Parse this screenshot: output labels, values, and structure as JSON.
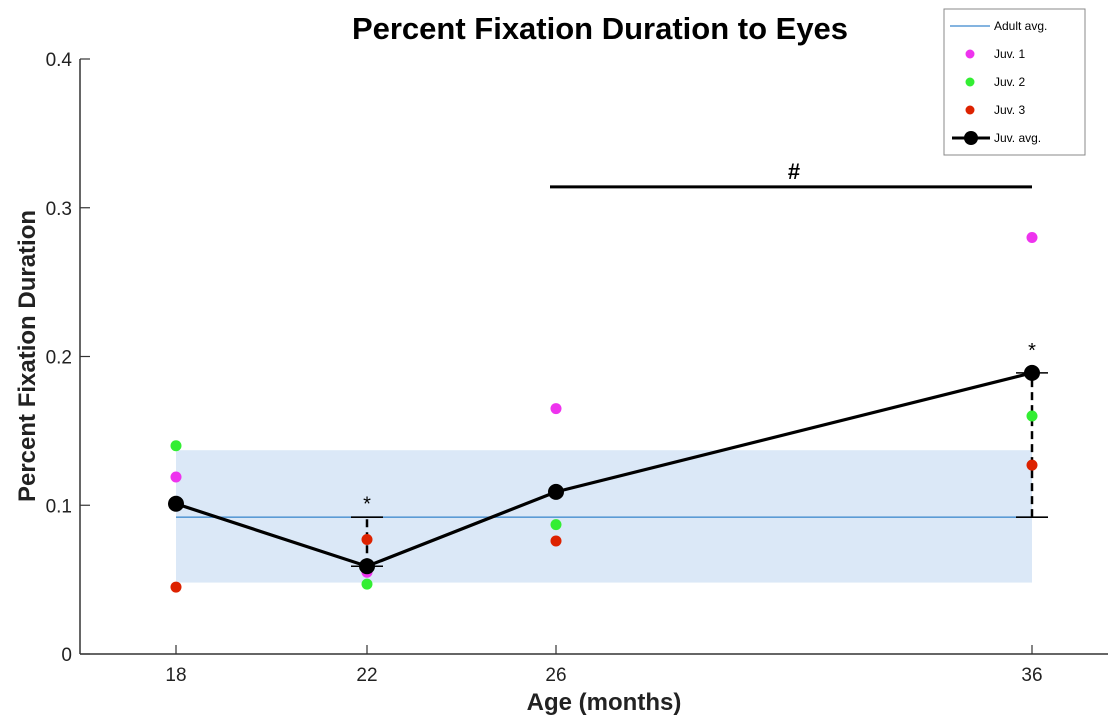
{
  "chart_data": {
    "type": "scatter",
    "title": "Percent Fixation Duration to Eyes",
    "xlabel": "Age (months)",
    "ylabel": "Percent Fixation Duration",
    "x_ticks": [
      "18",
      "22",
      "26",
      "36"
    ],
    "y_ticks": [
      "0",
      "0.1",
      "0.2",
      "0.3",
      "0.4"
    ],
    "ylim": [
      0,
      0.4
    ],
    "grid": false,
    "legend_position": "top-right",
    "colors": {
      "adult_avg": "#5b9bd5",
      "adult_band": "#dbe8f7",
      "juv1": "#ee33ee",
      "juv2": "#33ee33",
      "juv3": "#dd2200",
      "juv_avg": "#000000"
    },
    "adult_avg": {
      "name": "Adult avg.",
      "value": 0.092,
      "band": [
        0.048,
        0.137
      ]
    },
    "series": [
      {
        "name": "Juv. 1",
        "key": "juv1",
        "x": [
          18,
          22,
          26,
          36
        ],
        "values": [
          0.119,
          0.055,
          0.165,
          0.28
        ]
      },
      {
        "name": "Juv. 2",
        "key": "juv2",
        "x": [
          18,
          22,
          26,
          36
        ],
        "values": [
          0.14,
          0.047,
          0.087,
          0.16
        ]
      },
      {
        "name": "Juv. 3",
        "key": "juv3",
        "x": [
          18,
          22,
          26,
          36
        ],
        "values": [
          0.045,
          0.077,
          0.076,
          0.127
        ]
      }
    ],
    "juv_avg": {
      "name": "Juv. avg.",
      "x": [
        18,
        22,
        26,
        36
      ],
      "values": [
        0.101,
        0.059,
        0.109,
        0.189
      ]
    },
    "error_bars": [
      {
        "x": 22,
        "low": 0.059,
        "high": 0.092
      },
      {
        "x": 36,
        "low": 0.092,
        "high": 0.189
      }
    ],
    "annotations": [
      {
        "text": "*",
        "x": 22,
        "y": 0.102
      },
      {
        "text": "*",
        "x": 36,
        "y": 0.205
      }
    ],
    "bracket": {
      "text": "#",
      "x_start": 26,
      "x_end": 36,
      "y": 0.314
    }
  }
}
